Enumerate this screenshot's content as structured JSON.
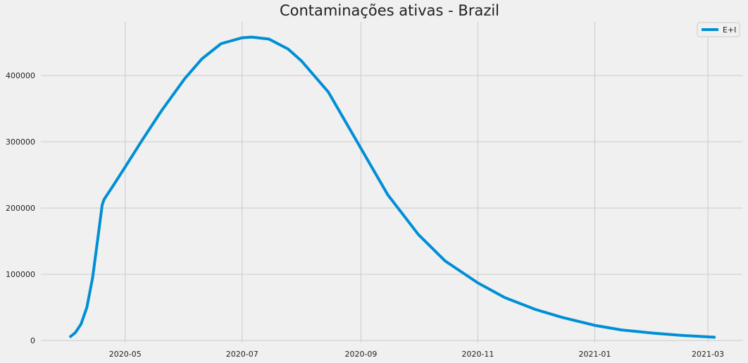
{
  "chart_data": {
    "type": "line",
    "title": "Contaminações ativas - Brazil",
    "xlabel": "",
    "ylabel": "",
    "x_type": "date",
    "xlim": [
      "2020-03-18",
      "2021-03-19"
    ],
    "ylim": [
      -3000,
      481000
    ],
    "grid": true,
    "legend_position": "top-right",
    "x_ticks": [
      "2020-05-01",
      "2020-07-01",
      "2020-09-01",
      "2020-11-01",
      "2021-01-01",
      "2021-03-01"
    ],
    "x_tick_labels": [
      "2020-05",
      "2020-07",
      "2020-09",
      "2020-11",
      "2021-01",
      "2021-03"
    ],
    "y_ticks": [
      0,
      100000,
      200000,
      300000,
      400000
    ],
    "y_tick_labels": [
      "0",
      "100000",
      "200000",
      "300000",
      "400000"
    ],
    "series": [
      {
        "name": "E+I",
        "color": "#008fd5",
        "x": [
          "2020-04-02",
          "2020-04-05",
          "2020-04-08",
          "2020-04-11",
          "2020-04-14",
          "2020-04-17",
          "2020-04-19",
          "2020-04-20",
          "2020-04-25",
          "2020-05-01",
          "2020-05-10",
          "2020-05-20",
          "2020-06-01",
          "2020-06-10",
          "2020-06-20",
          "2020-07-01",
          "2020-07-06",
          "2020-07-15",
          "2020-07-25",
          "2020-08-01",
          "2020-08-15",
          "2020-09-01",
          "2020-09-15",
          "2020-10-01",
          "2020-10-15",
          "2020-11-01",
          "2020-11-15",
          "2020-12-01",
          "2020-12-15",
          "2021-01-01",
          "2021-01-15",
          "2021-02-01",
          "2021-02-15",
          "2021-03-05"
        ],
        "y": [
          5000,
          12000,
          25000,
          50000,
          95000,
          160000,
          205000,
          213000,
          235000,
          262000,
          303000,
          347000,
          395000,
          425000,
          448000,
          457000,
          458000,
          455000,
          440000,
          422000,
          375000,
          290000,
          220000,
          160000,
          120000,
          87000,
          65000,
          47000,
          35000,
          23000,
          16000,
          11000,
          8000,
          5000
        ]
      }
    ]
  }
}
